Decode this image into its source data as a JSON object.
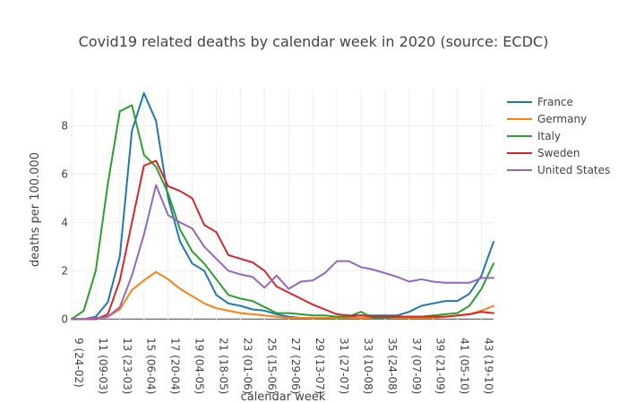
{
  "chart_data": {
    "type": "line",
    "title": "Covid19 related deaths by calendar week in 2020 (source: ECDC)",
    "xlabel": "calendar week",
    "ylabel": "deaths per 100.000",
    "ylim": [
      -0.1,
      9.5
    ],
    "y_ticks": [
      0,
      2,
      4,
      6,
      8
    ],
    "x": [
      9,
      10,
      11,
      12,
      13,
      14,
      15,
      16,
      17,
      18,
      19,
      20,
      21,
      22,
      23,
      24,
      25,
      26,
      27,
      28,
      29,
      30,
      31,
      32,
      33,
      34,
      35,
      36,
      37,
      38,
      39,
      40,
      41,
      42,
      43,
      44
    ],
    "x_ticks": [
      {
        "x": 9,
        "label": "9 (24-02)"
      },
      {
        "x": 11,
        "label": "11 (09-03)"
      },
      {
        "x": 13,
        "label": "13 (23-03)"
      },
      {
        "x": 15,
        "label": "15 (06-04)"
      },
      {
        "x": 17,
        "label": "17 (20-04)"
      },
      {
        "x": 19,
        "label": "19 (04-05)"
      },
      {
        "x": 21,
        "label": "21 (18-05)"
      },
      {
        "x": 23,
        "label": "23 (01-06)"
      },
      {
        "x": 25,
        "label": "25 (15-06)"
      },
      {
        "x": 27,
        "label": "27 (29-06)"
      },
      {
        "x": 29,
        "label": "29 (13-07)"
      },
      {
        "x": 31,
        "label": "31 (27-07)"
      },
      {
        "x": 33,
        "label": "33 (10-08)"
      },
      {
        "x": 35,
        "label": "35 (24-08)"
      },
      {
        "x": 37,
        "label": "37 (07-09)"
      },
      {
        "x": 39,
        "label": "39 (21-09)"
      },
      {
        "x": 41,
        "label": "41 (05-10)"
      },
      {
        "x": 43,
        "label": "43 (19-10)"
      }
    ],
    "legend_position": "top-right",
    "series": [
      {
        "name": "France",
        "color": "#1f77b4",
        "values": [
          0,
          0,
          0.1,
          0.7,
          2.6,
          7.8,
          9.35,
          8.2,
          5.0,
          3.2,
          2.3,
          2.0,
          1.0,
          0.65,
          0.55,
          0.4,
          0.35,
          0.2,
          0.1,
          0.05,
          0.05,
          0.05,
          0.05,
          0.1,
          0.15,
          0.15,
          0.15,
          0.15,
          0.3,
          0.55,
          0.65,
          0.75,
          0.75,
          1.05,
          1.8,
          3.2
        ]
      },
      {
        "name": "Germany",
        "color": "#ff7f0e",
        "values": [
          0,
          0,
          0,
          0.1,
          0.4,
          1.2,
          1.6,
          1.95,
          1.65,
          1.25,
          0.95,
          0.65,
          0.45,
          0.35,
          0.25,
          0.2,
          0.15,
          0.1,
          0.05,
          0.05,
          0.05,
          0.05,
          0.05,
          0.05,
          0.05,
          0.05,
          0.05,
          0.05,
          0.05,
          0.05,
          0.05,
          0.1,
          0.15,
          0.2,
          0.35,
          0.55
        ]
      },
      {
        "name": "Italy",
        "color": "#2ca02c",
        "values": [
          0,
          0.35,
          2.0,
          5.6,
          8.6,
          8.85,
          6.8,
          6.3,
          5.2,
          3.7,
          2.8,
          2.3,
          1.65,
          1.0,
          0.85,
          0.75,
          0.5,
          0.25,
          0.25,
          0.2,
          0.15,
          0.15,
          0.1,
          0.1,
          0.3,
          0.05,
          0.05,
          0.1,
          0.1,
          0.1,
          0.15,
          0.2,
          0.25,
          0.55,
          1.25,
          2.3
        ]
      },
      {
        "name": "Sweden",
        "color": "#d62728",
        "values": [
          0,
          0,
          0,
          0.2,
          1.6,
          4.0,
          6.35,
          6.55,
          5.5,
          5.3,
          5.0,
          3.9,
          3.6,
          2.65,
          2.5,
          2.35,
          2.0,
          1.35,
          1.1,
          0.85,
          0.6,
          0.4,
          0.2,
          0.15,
          0.15,
          0.1,
          0.1,
          0.1,
          0.1,
          0.1,
          0.1,
          0.1,
          0.15,
          0.2,
          0.3,
          0.25
        ]
      },
      {
        "name": "United States",
        "color": "#9467bd",
        "values": [
          0,
          0,
          0.05,
          0.1,
          0.5,
          1.8,
          3.5,
          5.55,
          4.3,
          4.0,
          3.75,
          3.0,
          2.5,
          2.0,
          1.85,
          1.75,
          1.3,
          1.8,
          1.25,
          1.55,
          1.6,
          1.9,
          2.4,
          2.4,
          2.15,
          2.05,
          1.9,
          1.75,
          1.55,
          1.65,
          1.55,
          1.5,
          1.5,
          1.5,
          1.7,
          1.7
        ]
      }
    ]
  }
}
